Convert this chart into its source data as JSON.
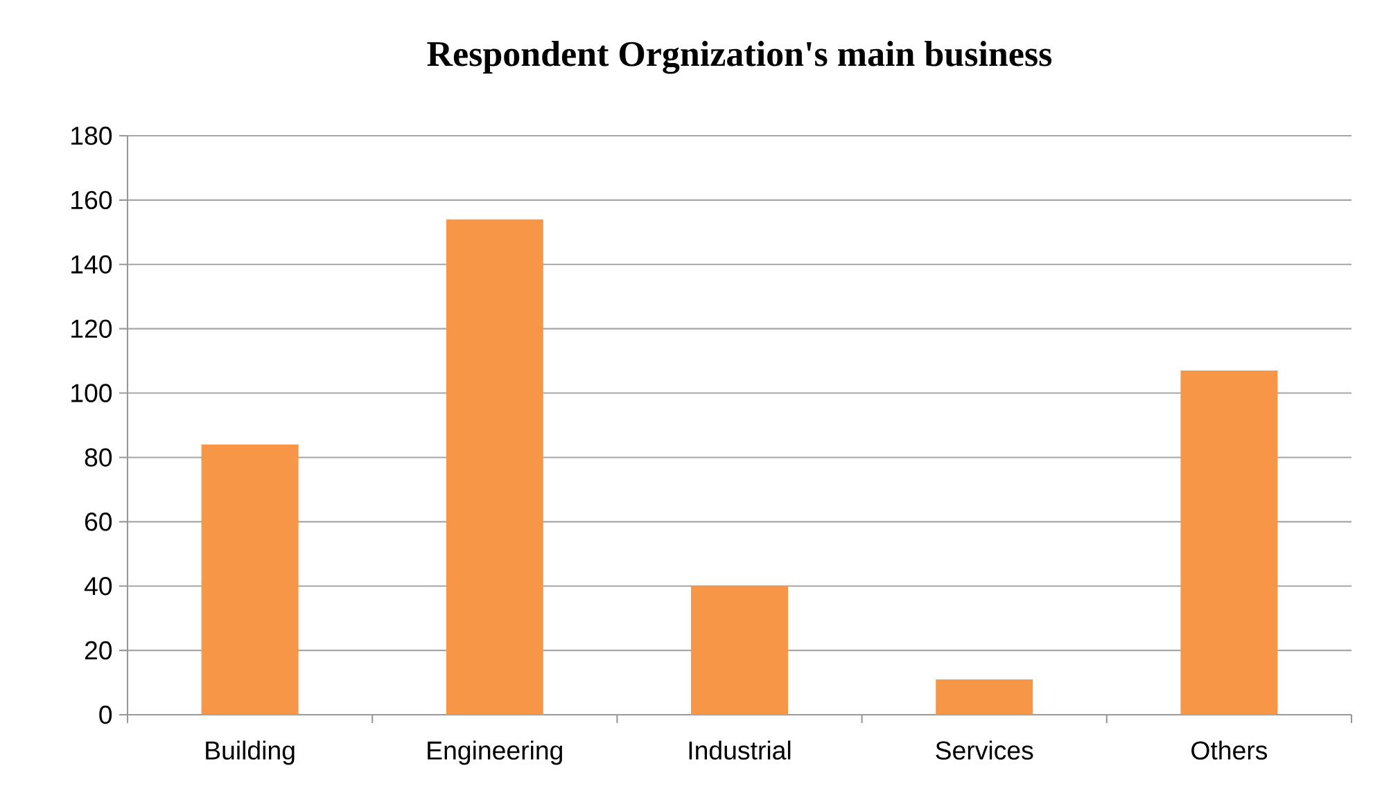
{
  "chart_data": {
    "type": "bar",
    "title": "Respondent Orgnization's main business",
    "categories": [
      "Building",
      "Engineering",
      "Industrial",
      "Services",
      "Others"
    ],
    "values": [
      84,
      154,
      40,
      11,
      107
    ],
    "color": "#f79646",
    "ylim": [
      0,
      180
    ],
    "yticks": [
      0,
      20,
      40,
      60,
      80,
      100,
      120,
      140,
      160,
      180
    ],
    "grid": "y"
  }
}
